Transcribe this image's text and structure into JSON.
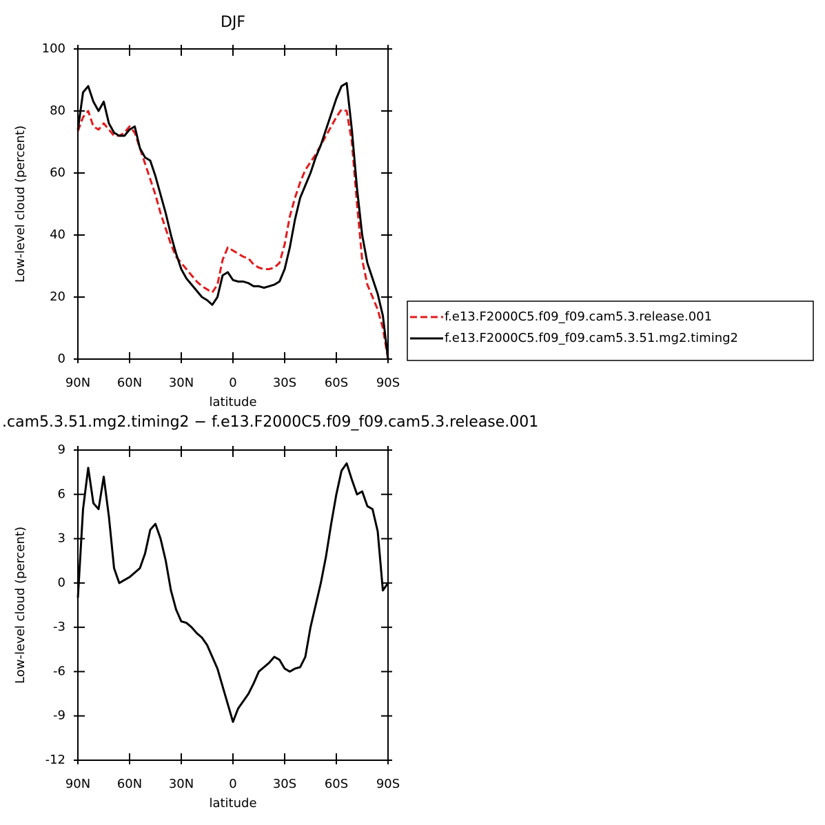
{
  "chart_data": [
    {
      "type": "line",
      "title": "DJF",
      "xlabel": "latitude",
      "ylabel": "Low-level cloud (percent)",
      "x": [
        90,
        87,
        84,
        81,
        78,
        75,
        72,
        69,
        66,
        63,
        60,
        57,
        54,
        51,
        48,
        45,
        42,
        39,
        36,
        33,
        30,
        27,
        24,
        21,
        18,
        15,
        12,
        9,
        6,
        3,
        0,
        -3,
        -6,
        -9,
        -12,
        -15,
        -18,
        -21,
        -24,
        -27,
        -30,
        -33,
        -36,
        -39,
        -42,
        -45,
        -48,
        -51,
        -54,
        -57,
        -60,
        -63,
        -66,
        -69,
        -72,
        -75,
        -78,
        -81,
        -84,
        -87,
        -90
      ],
      "series": [
        {
          "name": "f.e13.F2000C5.f09_f09.cam5.3.release.001",
          "color": "#e41a1c",
          "dashed": true,
          "values": [
            73.5,
            78,
            80,
            75,
            74,
            76,
            74,
            72,
            72,
            73,
            75,
            73,
            68,
            63,
            58,
            53,
            47,
            42,
            37,
            33,
            31,
            29,
            27,
            25,
            23.5,
            22.5,
            21.5,
            24,
            32,
            36,
            35,
            34,
            33,
            32.5,
            30.5,
            29.5,
            29,
            29,
            29.5,
            31,
            37,
            46,
            52,
            57,
            61,
            63.5,
            66,
            69,
            72,
            75,
            78,
            80.5,
            80,
            70,
            50,
            32,
            24,
            20,
            16,
            10,
            0
          ]
        },
        {
          "name": "f.e13.F2000C5.f09_f09.cam5.3.51.mg2.timing2",
          "color": "#000000",
          "dashed": false,
          "values": [
            74,
            86,
            88,
            83,
            80,
            83,
            76,
            73,
            72,
            72,
            74,
            75,
            68,
            65,
            64,
            59,
            53,
            47,
            40,
            34,
            29,
            26,
            24,
            22,
            20,
            19,
            17.5,
            20,
            27,
            28,
            25.5,
            25,
            25,
            24.5,
            23.5,
            23.5,
            23,
            23.5,
            24,
            25,
            29,
            36,
            45,
            52,
            56,
            60,
            65,
            69,
            74,
            79,
            84,
            88,
            89,
            74,
            55,
            40,
            31,
            26,
            21,
            14,
            0
          ]
        }
      ],
      "xlim": [
        90,
        -90
      ],
      "ylim": [
        0,
        100
      ],
      "xticks": [
        {
          "value": 90,
          "label": "90N"
        },
        {
          "value": 60,
          "label": "60N"
        },
        {
          "value": 30,
          "label": "30N"
        },
        0,
        {
          "value": -30,
          "label": "30S"
        },
        {
          "value": -60,
          "label": "60S"
        },
        {
          "value": -90,
          "label": "90S"
        }
      ],
      "yticks": [
        0,
        20,
        40,
        60,
        80,
        100
      ],
      "grid": false,
      "legend": "right"
    },
    {
      "type": "line",
      "title": ".cam5.3.51.mg2.timing2 − f.e13.F2000C5.f09_f09.cam5.3.release.001",
      "xlabel": "latitude",
      "ylabel": "Low-level cloud (percent)",
      "x": [
        90,
        87,
        84,
        81,
        78,
        75,
        72,
        69,
        66,
        63,
        60,
        57,
        54,
        51,
        48,
        45,
        42,
        39,
        36,
        33,
        30,
        27,
        24,
        21,
        18,
        15,
        12,
        9,
        6,
        3,
        0,
        -3,
        -6,
        -9,
        -12,
        -15,
        -18,
        -21,
        -24,
        -27,
        -30,
        -33,
        -36,
        -39,
        -42,
        -45,
        -48,
        -51,
        -54,
        -57,
        -60,
        -63,
        -66,
        -69,
        -72,
        -75,
        -78,
        -81,
        -84,
        -87,
        -90
      ],
      "color": "#000000",
      "values": [
        -1,
        5,
        7.8,
        5.4,
        5,
        7.2,
        4.5,
        1,
        0,
        0.2,
        0.4,
        0.7,
        1,
        2,
        3.6,
        4,
        3,
        1.5,
        -0.5,
        -1.8,
        -2.6,
        -2.7,
        -3,
        -3.4,
        -3.7,
        -4.2,
        -5,
        -5.8,
        -7,
        -8.2,
        -9.4,
        -8.5,
        -8,
        -7.5,
        -6.8,
        -6,
        -5.7,
        -5.4,
        -5,
        -5.2,
        -5.8,
        -6,
        -5.8,
        -5.7,
        -5,
        -3,
        -1.5,
        0,
        1.8,
        4,
        6,
        7.6,
        8.1,
        7,
        6,
        6.2,
        5.2,
        5,
        3.5,
        -0.5,
        0
      ],
      "xlim": [
        90,
        -90
      ],
      "ylim": [
        -12,
        9
      ],
      "xticks": [
        {
          "value": 90,
          "label": "90N"
        },
        {
          "value": 60,
          "label": "60N"
        },
        {
          "value": 30,
          "label": "30N"
        },
        0,
        {
          "value": -30,
          "label": "30S"
        },
        {
          "value": -60,
          "label": "60S"
        },
        {
          "value": -90,
          "label": "90S"
        }
      ],
      "yticks": [
        -12,
        -9,
        -6,
        -3,
        0,
        3,
        6,
        9
      ],
      "grid": false
    }
  ]
}
